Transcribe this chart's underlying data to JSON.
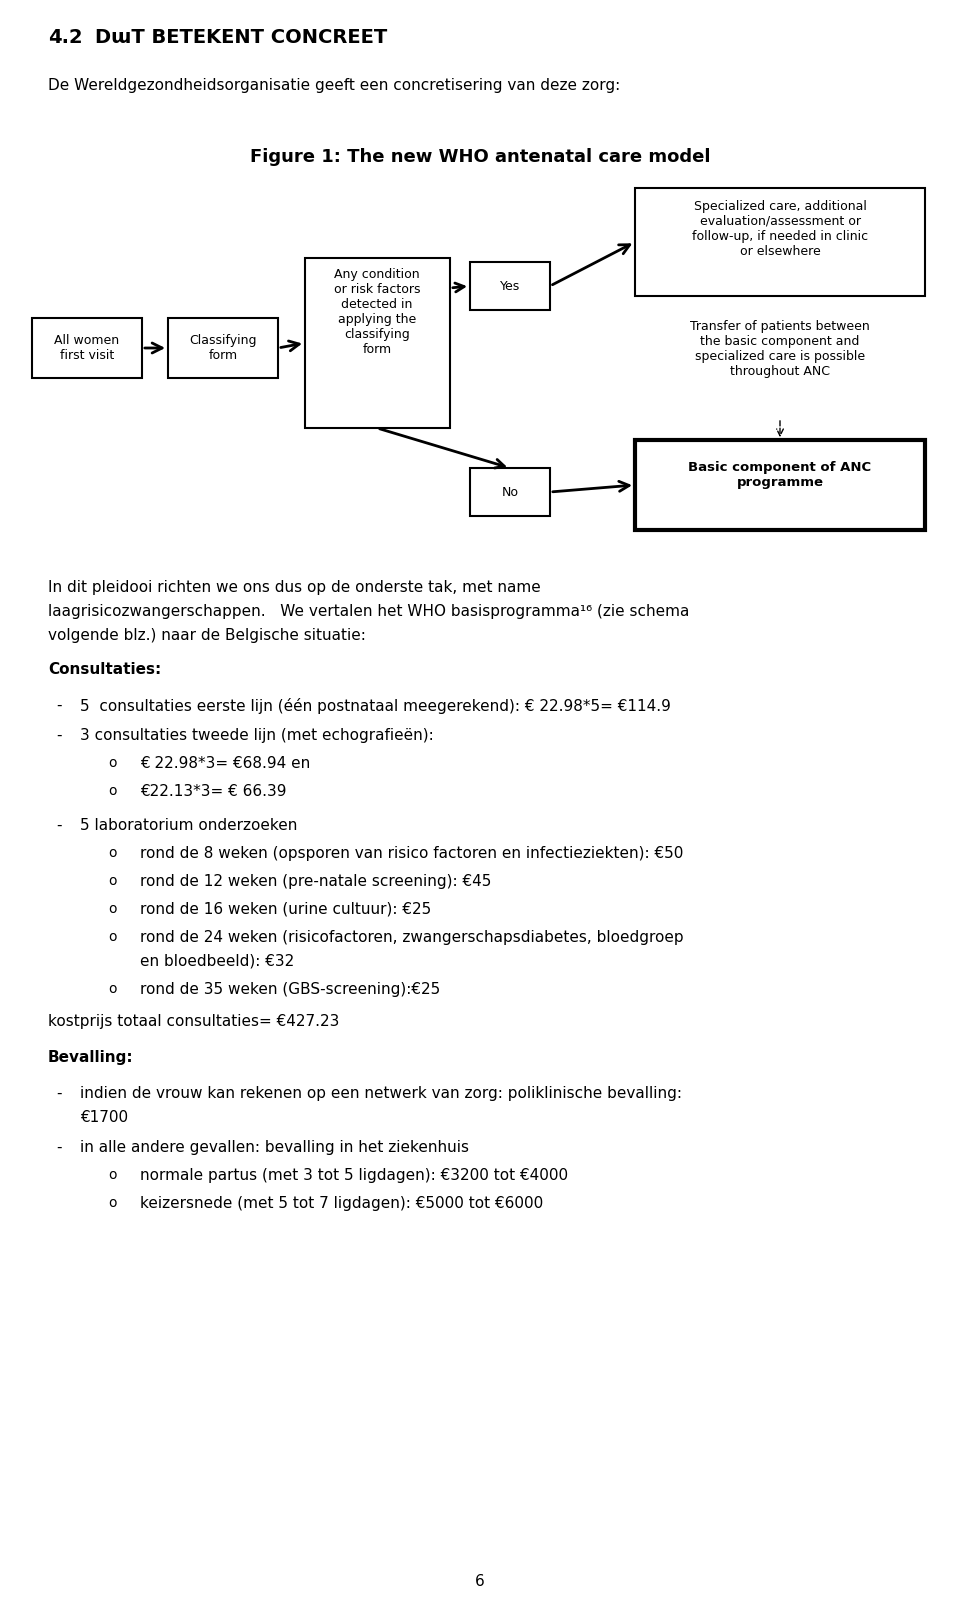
{
  "bg_color": "#ffffff",
  "page_number": "6",
  "title_num": "4.2",
  "title_text": "Dit betekent concreet",
  "intro_text": "De Wereldgezondheidsorganisatie geeft een concretisering van deze zorg:",
  "fig_title": "Figure 1: The new WHO antenatal care model",
  "section_consultaties": "Consultaties:",
  "bullet1": "5  consultaties eerste lijn (één postnataal meegerekend): € 22.98*5= €114.9",
  "bullet2": "3 consultaties tweede lijn (met echografieën):",
  "sub2a": "€ 22.98*3= €68.94 en",
  "sub2b": "€22.13*3= € 66.39",
  "bullet3": "5 laboratorium onderzoeken",
  "sub3a": "rond de 8 weken (opsporen van risico factoren en infectieziekten): €50",
  "sub3b": "rond de 12 weken (pre-natale screening): €45",
  "sub3c": "rond de 16 weken (urine cultuur): €25",
  "sub3d_line1": "rond de 24 weken (risicofactoren, zwangerschapsdiabetes, bloedgroep",
  "sub3d_line2": "en bloedbeeld): €32",
  "sub3e": "rond de 35 weken (GBS-screening):€25",
  "kostprijs": "kostprijs totaal consultaties= €427.23",
  "section_bevalling": "Bevalling:",
  "bev1_line1": "indien de vrouw kan rekenen op een netwerk van zorg: poliklinische bevalling:",
  "bev1_line2": "€1700",
  "bev2": "in alle andere gevallen: bevalling in het ziekenhuis",
  "bev2a": "normale partus (met 3 tot 5 ligdagen): €3200 tot €4000",
  "bev2b": "keizersnede (met 5 tot 7 ligdagen): €5000 tot €6000"
}
